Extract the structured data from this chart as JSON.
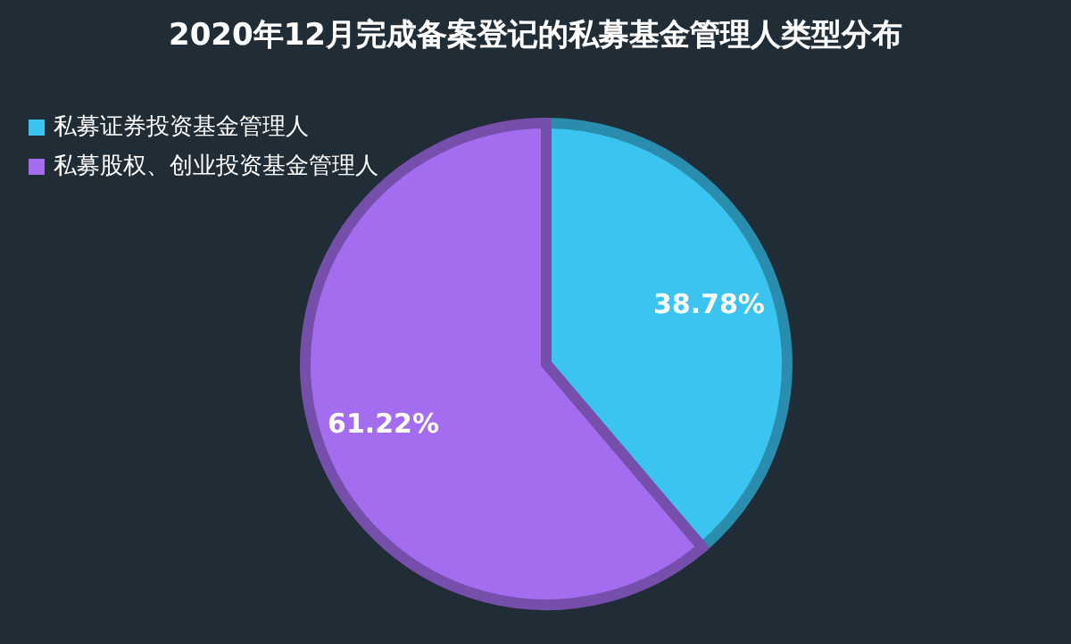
{
  "chart_data": {
    "type": "pie",
    "title": "2020年12月完成备案登记的私募基金管理人类型分布",
    "categories": [
      "私募证券投资基金管理人",
      "私募股权、创业投资基金管理人"
    ],
    "values": [
      38.78,
      61.22
    ],
    "colors": [
      "#3cc4f0",
      "#a46cee"
    ],
    "value_labels": [
      "38.78%",
      "61.22%"
    ],
    "legend": "top left"
  }
}
